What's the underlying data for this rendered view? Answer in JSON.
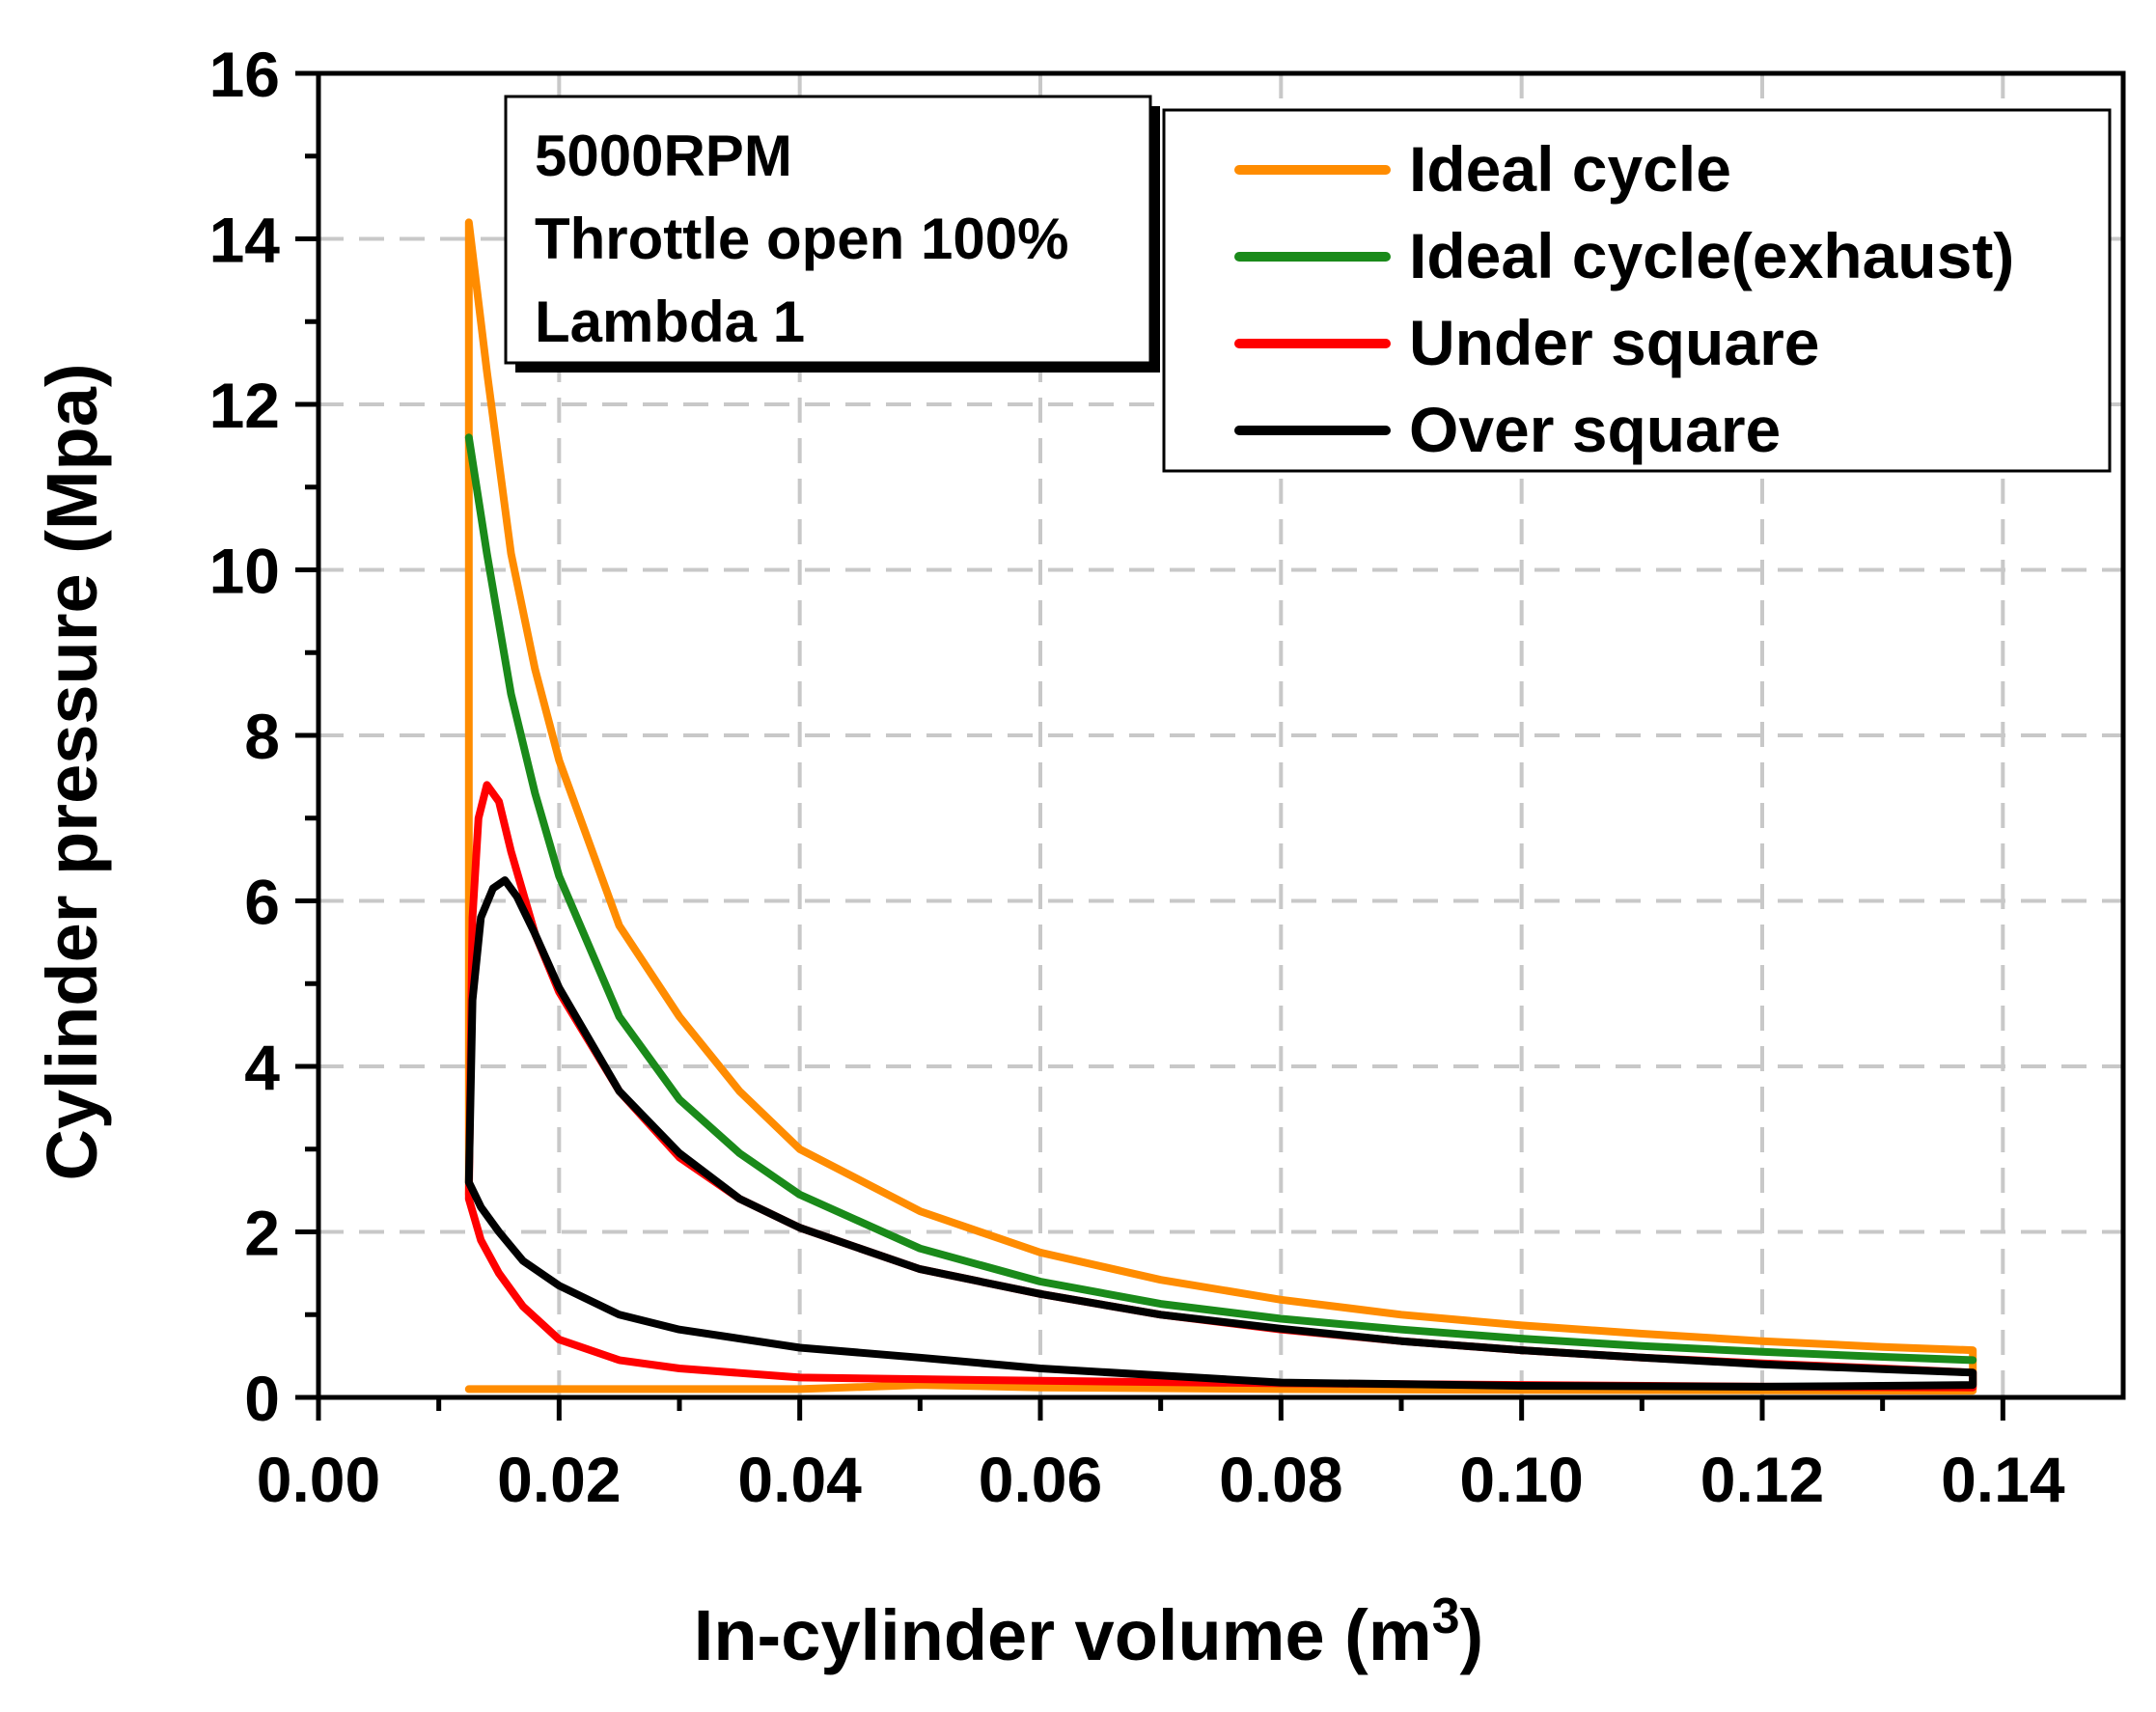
{
  "chart_data": {
    "type": "line",
    "title": "",
    "xlabel": "In-cylinder volume (m",
    "xlabel_superscript": "3",
    "xlabel_suffix": ")",
    "ylabel": "Cylinder pressure (Mpa)",
    "xlim": [
      0.0,
      0.15
    ],
    "ylim": [
      0,
      16
    ],
    "grid": true,
    "x_ticks": [
      {
        "value": 0.0,
        "label": "0.00"
      },
      {
        "value": 0.02,
        "label": "0.02"
      },
      {
        "value": 0.04,
        "label": "0.04"
      },
      {
        "value": 0.06,
        "label": "0.06"
      },
      {
        "value": 0.08,
        "label": "0.08"
      },
      {
        "value": 0.1,
        "label": "0.10"
      },
      {
        "value": 0.12,
        "label": "0.12"
      },
      {
        "value": 0.14,
        "label": "0.14"
      }
    ],
    "y_ticks": [
      {
        "value": 0,
        "label": "0"
      },
      {
        "value": 2,
        "label": "2"
      },
      {
        "value": 4,
        "label": "4"
      },
      {
        "value": 6,
        "label": "6"
      },
      {
        "value": 8,
        "label": "8"
      },
      {
        "value": 10,
        "label": "10"
      },
      {
        "value": 12,
        "label": "12"
      },
      {
        "value": 14,
        "label": "14"
      },
      {
        "value": 16,
        "label": "16"
      }
    ],
    "annotation": [
      "5000RPM",
      "Throttle open 100%",
      "Lambda 1"
    ],
    "legend_position": "top-right",
    "series": [
      {
        "name": "Ideal cycle",
        "color": "#FF8C00",
        "points": [
          [
            0.0125,
            2.45
          ],
          [
            0.0125,
            14.2
          ],
          [
            0.014,
            12.4
          ],
          [
            0.016,
            10.2
          ],
          [
            0.018,
            8.8
          ],
          [
            0.02,
            7.7
          ],
          [
            0.025,
            5.7
          ],
          [
            0.03,
            4.6
          ],
          [
            0.035,
            3.7
          ],
          [
            0.04,
            3.0
          ],
          [
            0.05,
            2.25
          ],
          [
            0.06,
            1.75
          ],
          [
            0.07,
            1.42
          ],
          [
            0.08,
            1.18
          ],
          [
            0.09,
            1.0
          ],
          [
            0.1,
            0.87
          ],
          [
            0.11,
            0.77
          ],
          [
            0.12,
            0.68
          ],
          [
            0.13,
            0.61
          ],
          [
            0.1375,
            0.57
          ],
          [
            0.1375,
            0.08
          ],
          [
            0.1,
            0.09
          ],
          [
            0.08,
            0.1
          ],
          [
            0.06,
            0.12
          ],
          [
            0.05,
            0.15
          ],
          [
            0.04,
            0.1
          ],
          [
            0.0125,
            0.1
          ]
        ]
      },
      {
        "name": "Ideal cycle(exhaust)",
        "color": "#1A8A1A",
        "points": [
          [
            0.0125,
            11.6
          ],
          [
            0.014,
            10.2
          ],
          [
            0.016,
            8.5
          ],
          [
            0.018,
            7.3
          ],
          [
            0.02,
            6.3
          ],
          [
            0.025,
            4.6
          ],
          [
            0.03,
            3.6
          ],
          [
            0.035,
            2.95
          ],
          [
            0.04,
            2.45
          ],
          [
            0.05,
            1.8
          ],
          [
            0.06,
            1.4
          ],
          [
            0.07,
            1.13
          ],
          [
            0.08,
            0.95
          ],
          [
            0.09,
            0.82
          ],
          [
            0.1,
            0.71
          ],
          [
            0.11,
            0.62
          ],
          [
            0.12,
            0.55
          ],
          [
            0.13,
            0.49
          ],
          [
            0.1375,
            0.45
          ]
        ]
      },
      {
        "name": "Under square",
        "color": "#FF0000",
        "points": [
          [
            0.0125,
            2.4
          ],
          [
            0.0128,
            5.8
          ],
          [
            0.0133,
            7.0
          ],
          [
            0.014,
            7.4
          ],
          [
            0.015,
            7.2
          ],
          [
            0.016,
            6.6
          ],
          [
            0.018,
            5.6
          ],
          [
            0.02,
            4.9
          ],
          [
            0.025,
            3.7
          ],
          [
            0.03,
            2.9
          ],
          [
            0.035,
            2.4
          ],
          [
            0.04,
            2.05
          ],
          [
            0.05,
            1.55
          ],
          [
            0.06,
            1.25
          ],
          [
            0.07,
            1.0
          ],
          [
            0.08,
            0.82
          ],
          [
            0.09,
            0.68
          ],
          [
            0.1,
            0.57
          ],
          [
            0.11,
            0.48
          ],
          [
            0.12,
            0.41
          ],
          [
            0.13,
            0.35
          ],
          [
            0.1375,
            0.3
          ],
          [
            0.1375,
            0.12
          ],
          [
            0.12,
            0.13
          ],
          [
            0.1,
            0.15
          ],
          [
            0.08,
            0.17
          ],
          [
            0.06,
            0.2
          ],
          [
            0.05,
            0.22
          ],
          [
            0.04,
            0.24
          ],
          [
            0.03,
            0.35
          ],
          [
            0.025,
            0.45
          ],
          [
            0.02,
            0.7
          ],
          [
            0.017,
            1.1
          ],
          [
            0.015,
            1.5
          ],
          [
            0.0135,
            1.9
          ],
          [
            0.0125,
            2.4
          ]
        ]
      },
      {
        "name": "Over square",
        "color": "#000000",
        "points": [
          [
            0.0125,
            2.6
          ],
          [
            0.0128,
            4.8
          ],
          [
            0.0135,
            5.8
          ],
          [
            0.0145,
            6.15
          ],
          [
            0.0155,
            6.25
          ],
          [
            0.0165,
            6.05
          ],
          [
            0.018,
            5.6
          ],
          [
            0.02,
            4.95
          ],
          [
            0.025,
            3.7
          ],
          [
            0.03,
            2.95
          ],
          [
            0.035,
            2.4
          ],
          [
            0.04,
            2.05
          ],
          [
            0.05,
            1.55
          ],
          [
            0.06,
            1.25
          ],
          [
            0.07,
            1.0
          ],
          [
            0.08,
            0.83
          ],
          [
            0.09,
            0.68
          ],
          [
            0.1,
            0.57
          ],
          [
            0.11,
            0.48
          ],
          [
            0.12,
            0.4
          ],
          [
            0.13,
            0.34
          ],
          [
            0.1375,
            0.3
          ],
          [
            0.1375,
            0.15
          ],
          [
            0.13,
            0.14
          ],
          [
            0.12,
            0.13
          ],
          [
            0.1,
            0.14
          ],
          [
            0.08,
            0.18
          ],
          [
            0.06,
            0.35
          ],
          [
            0.05,
            0.48
          ],
          [
            0.04,
            0.6
          ],
          [
            0.03,
            0.82
          ],
          [
            0.025,
            1.0
          ],
          [
            0.02,
            1.35
          ],
          [
            0.017,
            1.65
          ],
          [
            0.015,
            2.0
          ],
          [
            0.0135,
            2.3
          ],
          [
            0.0125,
            2.6
          ]
        ]
      }
    ]
  }
}
